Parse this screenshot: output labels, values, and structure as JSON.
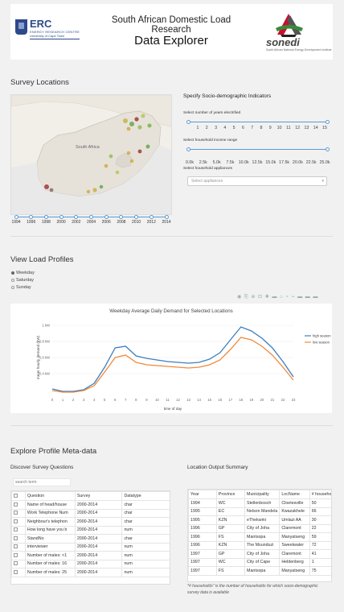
{
  "header": {
    "title": "South African Domestic Load Research",
    "subtitle": "Data Explorer",
    "left_logo": {
      "text": "ERC",
      "sub1": "ENERGY RESEARCH CENTRE",
      "sub2": "University of Cape Town"
    },
    "right_logo": {
      "text": "sonedi",
      "sub": "South African National Energy Development Institute"
    }
  },
  "survey_locations": {
    "title": "Survey Locations",
    "map_label": "South Africa",
    "years": [
      "1994",
      "1996",
      "1998",
      "2000",
      "2002",
      "2004",
      "2006",
      "2008",
      "2010",
      "2012",
      "2014"
    ]
  },
  "indicators": {
    "title": "Specify Socio-demographic Indicators",
    "electrified_label": "Select number of years electrified",
    "electrified_ticks": [
      "1",
      "2",
      "3",
      "4",
      "5",
      "6",
      "7",
      "8",
      "9",
      "10",
      "11",
      "12",
      "13",
      "14",
      "15"
    ],
    "income_label": "Select household income range",
    "income_ticks": [
      "0.0k",
      "2.5k",
      "5.0k",
      "7.5k",
      "10.0k",
      "12.5k",
      "15.0k",
      "17.5k",
      "20.0k",
      "22.5k",
      "25.0k"
    ],
    "appliances_label": "Select household appliances",
    "appliances_placeholder": "Select appliances"
  },
  "load_profiles": {
    "title": "View Load Profiles",
    "options": [
      "Weekday",
      "Saturday",
      "Sunday"
    ],
    "selected": "Weekday",
    "modebar": "◉ ⎘ ⊕ ⊡ ✚ ▬ ⌂ ∘ ⌁ ▬ ▬ ▬"
  },
  "chart_data": {
    "type": "line",
    "title": "Weekday Average Daily Demand for Selected Locations",
    "xlabel": "time of day",
    "ylabel": "mean hourly demand (kW)",
    "x": [
      0,
      1,
      2,
      3,
      4,
      5,
      6,
      7,
      8,
      9,
      10,
      11,
      12,
      13,
      14,
      15,
      16,
      17,
      18,
      19,
      20,
      21,
      22,
      23
    ],
    "ylim": [
      0.15,
      1.05
    ],
    "yticks": [
      0.4,
      0.6,
      0.8,
      1.0
    ],
    "yticklabels": [
      "0.4 kW",
      "0.6 kW",
      "0.8 kW",
      "1 kW"
    ],
    "series": [
      {
        "name": "high season",
        "color": "#3d7ebf",
        "values": [
          0.21,
          0.18,
          0.18,
          0.2,
          0.28,
          0.48,
          0.72,
          0.74,
          0.62,
          0.59,
          0.57,
          0.55,
          0.54,
          0.53,
          0.54,
          0.58,
          0.66,
          0.82,
          0.98,
          0.93,
          0.84,
          0.72,
          0.55,
          0.36
        ]
      },
      {
        "name": "low season",
        "color": "#f08a3a",
        "values": [
          0.19,
          0.17,
          0.17,
          0.19,
          0.25,
          0.42,
          0.6,
          0.63,
          0.54,
          0.51,
          0.5,
          0.49,
          0.48,
          0.47,
          0.48,
          0.51,
          0.57,
          0.7,
          0.85,
          0.82,
          0.74,
          0.63,
          0.48,
          0.32
        ]
      }
    ],
    "legend_position": "top-right"
  },
  "meta": {
    "title": "Explore Profile Meta-data",
    "questions": {
      "title": "Discover Survey Questions",
      "search_placeholder": "search term",
      "columns": [
        "Question",
        "Survey",
        "Datatype"
      ],
      "rows": [
        [
          "Name of head/house",
          "2000-2014",
          "char"
        ],
        [
          "Work Telephone Num",
          "2000-2014",
          "char"
        ],
        [
          "Neighbour's telephon",
          "2000-2014",
          "char"
        ],
        [
          "How long have you b",
          "2000-2014",
          "num"
        ],
        [
          "StandNo",
          "2000-2014",
          "char"
        ],
        [
          "interviewer",
          "2000-2014",
          "num"
        ],
        [
          "Number of males: <1",
          "2000-2014",
          "num"
        ],
        [
          "Number of males: 16",
          "2000-2014",
          "num"
        ],
        [
          "Number of males: 25",
          "2000-2014",
          "num"
        ]
      ]
    },
    "location": {
      "title": "Location Output Summary",
      "columns": [
        "Year",
        "Province",
        "Municipality",
        "LocName",
        "# households*"
      ],
      "rows": [
        [
          "1994",
          "WC",
          "Stellenbosch",
          "Cloetesville",
          "50"
        ],
        [
          "1995",
          "EC",
          "Nelson Mandela",
          "Kwazakhele",
          "66"
        ],
        [
          "1995",
          "KZN",
          "eThekwini",
          "Umlazi AA",
          "30"
        ],
        [
          "1996",
          "GP",
          "City of Joha",
          "Claremont",
          "22"
        ],
        [
          "1996",
          "FS",
          "Mantsopa",
          "Manyatseng",
          "59"
        ],
        [
          "1996",
          "KZN",
          "The Msunduzi",
          "Sweetwater",
          "72"
        ],
        [
          "1997",
          "GP",
          "City of Joha",
          "Claremont",
          "41"
        ],
        [
          "1997",
          "WC",
          "City of Cape",
          "Heldenberg",
          "1"
        ],
        [
          "1997",
          "FS",
          "Mantsopa",
          "Manyatseng",
          "75"
        ]
      ],
      "footnote": "*# households\" is the number of households for which socio-demographic survey data is available"
    }
  }
}
